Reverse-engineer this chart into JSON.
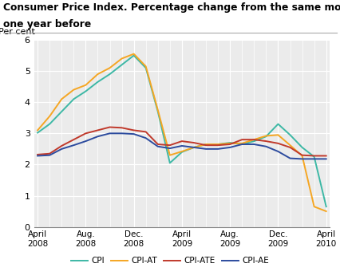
{
  "title1": "Consumer Price Index. Percentage change from the same month",
  "title2": "one year before",
  "ylabel": "Per cent",
  "ylim": [
    0,
    6
  ],
  "yticks": [
    0,
    1,
    2,
    3,
    4,
    5,
    6
  ],
  "x_labels": [
    "April\n2008",
    "Aug.\n2008",
    "Dec.\n2008",
    "April\n2009",
    "Aug.\n2009",
    "Dec.\n2009",
    "April\n2010"
  ],
  "x_tick_pos": [
    0,
    4,
    8,
    12,
    16,
    20,
    24
  ],
  "series": {
    "CPI": {
      "color": "#3db8a5",
      "values": [
        3.02,
        3.3,
        3.7,
        4.1,
        4.35,
        4.65,
        4.9,
        5.2,
        5.5,
        5.1,
        3.7,
        2.05,
        2.4,
        2.55,
        2.65,
        2.65,
        2.7,
        2.65,
        2.75,
        2.9,
        3.3,
        2.95,
        2.55,
        2.25,
        0.65
      ]
    },
    "CPI-AT": {
      "color": "#f5a623",
      "values": [
        3.1,
        3.55,
        4.1,
        4.4,
        4.55,
        4.9,
        5.1,
        5.4,
        5.55,
        5.15,
        3.75,
        2.3,
        2.42,
        2.55,
        2.65,
        2.65,
        2.68,
        2.68,
        2.8,
        2.92,
        2.95,
        2.62,
        2.28,
        0.65,
        0.5
      ]
    },
    "CPI-ATE": {
      "color": "#c0392b",
      "values": [
        2.32,
        2.35,
        2.6,
        2.8,
        3.0,
        3.1,
        3.2,
        3.18,
        3.1,
        3.05,
        2.65,
        2.62,
        2.75,
        2.7,
        2.62,
        2.62,
        2.65,
        2.8,
        2.8,
        2.75,
        2.68,
        2.55,
        2.3,
        2.28,
        2.28
      ]
    },
    "CPI-AE": {
      "color": "#2c4b9e",
      "values": [
        2.28,
        2.3,
        2.5,
        2.62,
        2.75,
        2.9,
        3.0,
        3.0,
        2.98,
        2.85,
        2.58,
        2.52,
        2.6,
        2.55,
        2.5,
        2.5,
        2.55,
        2.65,
        2.65,
        2.58,
        2.42,
        2.2,
        2.18,
        2.18,
        2.18
      ]
    }
  },
  "n_points": 25,
  "legend_order": [
    "CPI",
    "CPI-AT",
    "CPI-ATE",
    "CPI-AE"
  ],
  "bg_color": "#ebebeb",
  "grid_color": "#ffffff",
  "linewidth": 1.4
}
